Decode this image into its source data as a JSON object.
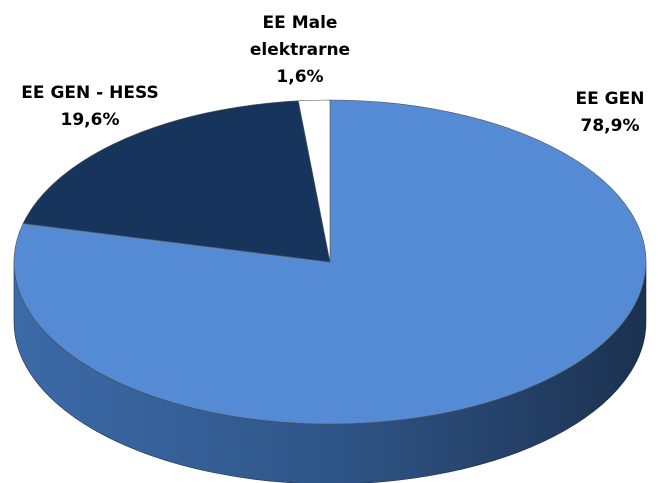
{
  "chart_data": {
    "type": "pie",
    "categories": [
      "EE GEN",
      "EE GEN - HESS",
      "EE Male elektrarne"
    ],
    "values": [
      78.9,
      19.6,
      1.6
    ],
    "value_labels": [
      "78,9%",
      "19,6%",
      "1,6%"
    ],
    "colors": [
      "#558ad4",
      "#17355c",
      "#ffffff"
    ]
  }
}
